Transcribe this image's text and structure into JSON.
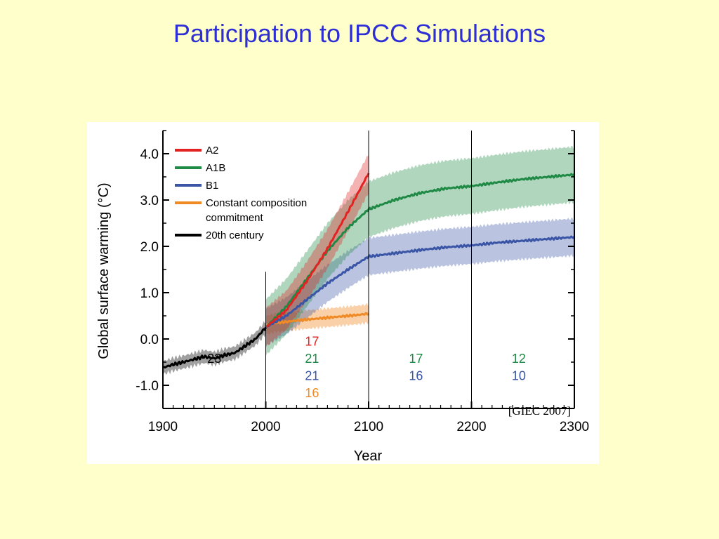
{
  "slide": {
    "title": "Participation to IPCC Simulations"
  },
  "colors": {
    "A2": "#e32322",
    "A1B": "#1f8a45",
    "B1": "#3a55a6",
    "commitment": "#f08a24",
    "century20": "#000000",
    "background": "#ffffcc",
    "title": "#2e2ed6"
  },
  "chart_data": {
    "type": "line",
    "title": "",
    "xlabel": "Year",
    "ylabel": "Global surface warming (°C)",
    "xlim": [
      1900,
      2300
    ],
    "ylim": [
      -1.5,
      4.5
    ],
    "xticks": [
      "1900",
      "2000",
      "2100",
      "2200",
      "2300"
    ],
    "yticks": [
      "4.0",
      "3.0",
      "2.0",
      "1.0",
      "0.0",
      "-1.0"
    ],
    "ytick_values": [
      4,
      3,
      2,
      1,
      0,
      -1
    ],
    "period_dividers": [
      2000,
      2100,
      2200
    ],
    "grid": false,
    "legend": {
      "position": "top-left",
      "entries": [
        {
          "key": "A2",
          "label": "A2"
        },
        {
          "key": "A1B",
          "label": "A1B"
        },
        {
          "key": "B1",
          "label": "B1"
        },
        {
          "key": "commitment",
          "label": "Constant composition",
          "label2": "commitment"
        },
        {
          "key": "century20",
          "label": "20th century"
        }
      ]
    },
    "series": [
      {
        "name": "20th century",
        "key": "century20",
        "x": [
          1900,
          1910,
          1920,
          1930,
          1940,
          1950,
          1960,
          1970,
          1980,
          1990,
          2000
        ],
        "y": [
          -0.62,
          -0.55,
          -0.5,
          -0.44,
          -0.38,
          -0.42,
          -0.35,
          -0.3,
          -0.15,
          0.0,
          0.25
        ],
        "band": 0.14
      },
      {
        "name": "Constant composition commitment",
        "key": "commitment",
        "x": [
          2000,
          2010,
          2020,
          2030,
          2040,
          2050,
          2060,
          2070,
          2080,
          2090,
          2100
        ],
        "y": [
          0.3,
          0.35,
          0.37,
          0.4,
          0.42,
          0.44,
          0.46,
          0.48,
          0.5,
          0.52,
          0.55
        ],
        "band": 0.2
      },
      {
        "name": "B1",
        "key": "B1",
        "x": [
          2000,
          2020,
          2040,
          2060,
          2080,
          2100,
          2125,
          2150,
          2175,
          2200,
          2225,
          2250,
          2275,
          2300
        ],
        "y": [
          0.25,
          0.5,
          0.85,
          1.2,
          1.5,
          1.78,
          1.85,
          1.92,
          1.98,
          2.02,
          2.08,
          2.12,
          2.16,
          2.2
        ],
        "band": 0.4
      },
      {
        "name": "A1B",
        "key": "A1B",
        "x": [
          2000,
          2020,
          2040,
          2060,
          2080,
          2100,
          2125,
          2150,
          2175,
          2200,
          2225,
          2250,
          2275,
          2300
        ],
        "y": [
          0.25,
          0.7,
          1.3,
          1.9,
          2.4,
          2.8,
          3.0,
          3.15,
          3.25,
          3.3,
          3.38,
          3.45,
          3.5,
          3.55
        ],
        "band": 0.6
      },
      {
        "name": "A2",
        "key": "A2",
        "x": [
          2000,
          2020,
          2040,
          2060,
          2080,
          2100
        ],
        "y": [
          0.25,
          0.62,
          1.25,
          1.95,
          2.75,
          3.58
        ],
        "band": 0.42
      }
    ],
    "model_counts": [
      {
        "x": 1950,
        "row": 0,
        "text": "23",
        "key": "century20"
      },
      {
        "x": 2045,
        "row": -1,
        "text": "17",
        "key": "A2"
      },
      {
        "x": 2045,
        "row": 0,
        "text": "21",
        "key": "A1B"
      },
      {
        "x": 2045,
        "row": 1,
        "text": "21",
        "key": "B1"
      },
      {
        "x": 2045,
        "row": 2,
        "text": "16",
        "key": "commitment"
      },
      {
        "x": 2146,
        "row": 0,
        "text": "17",
        "key": "A1B"
      },
      {
        "x": 2146,
        "row": 1,
        "text": "16",
        "key": "B1"
      },
      {
        "x": 2246,
        "row": 0,
        "text": "12",
        "key": "A1B"
      },
      {
        "x": 2246,
        "row": 1,
        "text": "10",
        "key": "B1"
      }
    ],
    "source": "[GIEC 2007]"
  }
}
